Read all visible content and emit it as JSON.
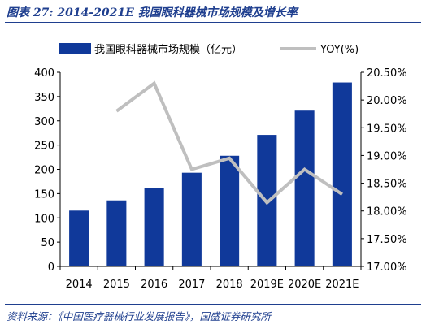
{
  "figure": {
    "title": "图表 27:  2014-2021E 我国眼科器械市场规模及增长率",
    "source": "资料来源：《中国医疗器械行业发展报告》，国盛证券研究所"
  },
  "colors": {
    "bar": "#10399a",
    "line": "#bfbfbf",
    "text": "#000000",
    "accent": "#1f3f8f"
  },
  "chart_data": {
    "type": "bar",
    "categories": [
      "2014",
      "2015",
      "2016",
      "2017",
      "2018",
      "2019E",
      "2020E",
      "2021E"
    ],
    "series": [
      {
        "name": "我国眼科器械市场规模（亿元）",
        "type": "bar",
        "axis": "left",
        "values": [
          115,
          136,
          162,
          193,
          228,
          271,
          321,
          379
        ]
      },
      {
        "name": "YOY(%)",
        "type": "line",
        "axis": "right",
        "values": [
          null,
          19.8,
          20.3,
          18.75,
          18.95,
          18.15,
          18.75,
          18.3
        ]
      }
    ],
    "y_left": {
      "min": 0,
      "max": 400,
      "ticks": [
        "0",
        "50",
        "100",
        "150",
        "200",
        "250",
        "300",
        "350",
        "400"
      ]
    },
    "y_right": {
      "min": 17.0,
      "max": 20.5,
      "ticks": [
        "17.00%",
        "17.50%",
        "18.00%",
        "18.50%",
        "19.00%",
        "19.50%",
        "20.00%",
        "20.50%"
      ]
    },
    "legend_position": "top",
    "grid": false
  }
}
